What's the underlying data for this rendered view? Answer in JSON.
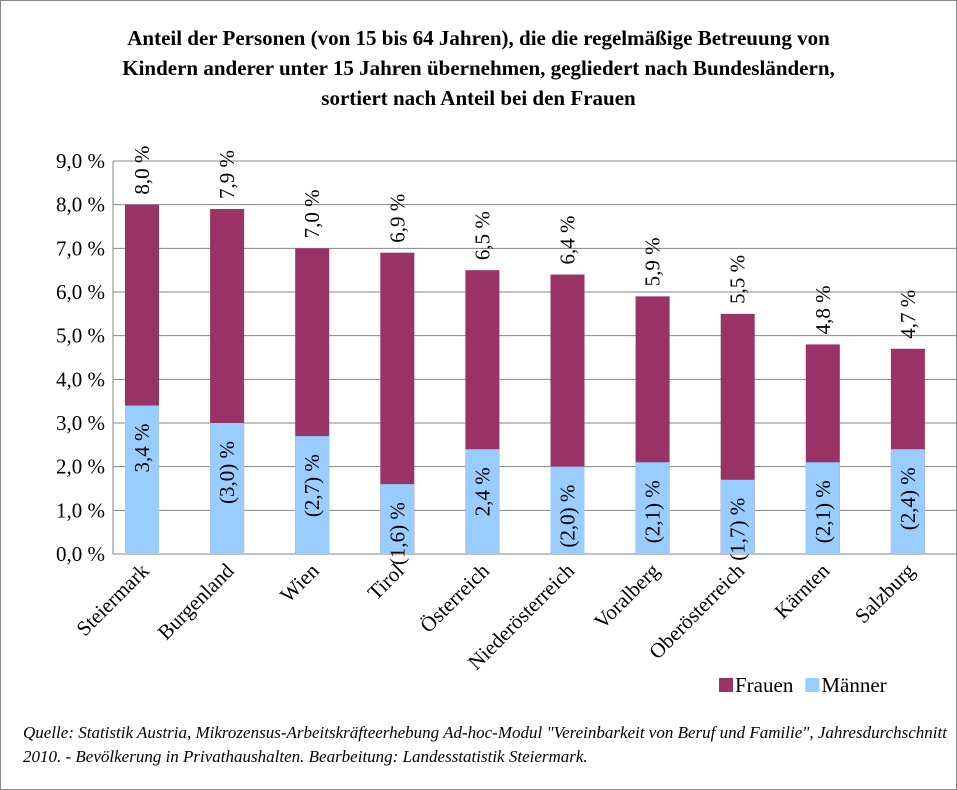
{
  "chart_data": {
    "type": "bar",
    "title": "Anteil der Personen (von 15 bis 64 Jahren), die die regelmäßige Betreuung von Kindern anderer unter 15 Jahren übernehmen, gegliedert nach Bundesländern, sortiert nach Anteil bei den Frauen",
    "categories": [
      "Steiermark",
      "Burgenland",
      "Wien",
      "Tirol",
      "Österreich",
      "Niederösterreich",
      "Voralberg",
      "Oberösterreich",
      "Kärnten",
      "Salzburg"
    ],
    "series": [
      {
        "name": "Frauen",
        "color": "#993366",
        "values": [
          8.0,
          7.9,
          7.0,
          6.9,
          6.5,
          6.4,
          5.9,
          5.5,
          4.8,
          4.7
        ],
        "value_labels": [
          "8,0 %",
          "7,9 %",
          "7,0 %",
          "6,9 %",
          "6,5 %",
          "6,4 %",
          "5,9 %",
          "5,5 %",
          "4,8 %",
          "4,7 %"
        ]
      },
      {
        "name": "Männer",
        "color": "#99ccff",
        "values": [
          3.4,
          3.0,
          2.7,
          1.6,
          2.4,
          2.0,
          2.1,
          1.7,
          2.1,
          2.4
        ],
        "value_labels": [
          "3,4 %",
          "(3,0) %",
          "(2,7) %",
          "(1,6) %",
          "2,4 %",
          "(2,0) %",
          "(2,1) %",
          "(1,7) %",
          "(2,1) %",
          "(2,4) %"
        ]
      }
    ],
    "ylim": [
      0,
      9
    ],
    "yticks": [
      {
        "value": 0,
        "label": "0,0 %"
      },
      {
        "value": 1,
        "label": "1,0 %"
      },
      {
        "value": 2,
        "label": "2,0 %"
      },
      {
        "value": 3,
        "label": "3,0 %"
      },
      {
        "value": 4,
        "label": "4,0 %"
      },
      {
        "value": 5,
        "label": "5,0 %"
      },
      {
        "value": 6,
        "label": "6,0 %"
      },
      {
        "value": 7,
        "label": "7,0 %"
      },
      {
        "value": 8,
        "label": "8,0 %"
      },
      {
        "value": 9,
        "label": "9,0 %"
      }
    ],
    "grid": true,
    "legend": "bottom-right",
    "source": "Quelle: Statistik Austria, Mikrozensus-Arbeitskräfteerhebung Ad-hoc-Modul \"Vereinbarkeit von Beruf und Familie\", Jahresdurchschnitt 2010. - Bevölkerung in Privathaushalten. Bearbeitung: Landesstatistik Steiermark."
  }
}
